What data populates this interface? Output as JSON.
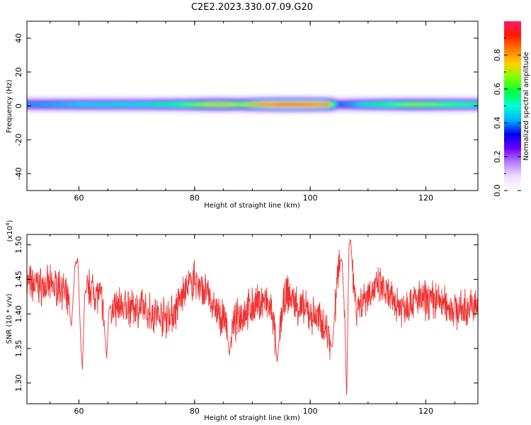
{
  "title": "C2E2.2023.330.07.09.G20",
  "colors": {
    "snr_line": "#ee3333",
    "colormap": [
      "#ffffff",
      "#ece0ff",
      "#b77cff",
      "#6a00ff",
      "#0000ee",
      "#00b3ff",
      "#00ffd5",
      "#00ff40",
      "#7fff00",
      "#ffd000",
      "#ff7a00",
      "#ff1a00",
      "#ff1a6a"
    ]
  },
  "chart_data": [
    {
      "type": "heatmap",
      "xlabel": "Height of straight line (km)",
      "ylabel": "Frequency (Hz)",
      "xlim": [
        51,
        129
      ],
      "ylim": [
        -50,
        50
      ],
      "x_ticks": [
        60,
        80,
        100,
        120
      ],
      "y_ticks": [
        -40,
        -20,
        0,
        20,
        40
      ],
      "colorbar": {
        "label": "Normalized spectral amplitude",
        "range": [
          0,
          1
        ],
        "ticks": [
          0.0,
          0.2,
          0.4,
          0.6,
          0.8
        ]
      },
      "band": {
        "center_hz": 1,
        "halfwidth_hz": 6,
        "peak_amplitude": [
          {
            "height_km": 51,
            "amp": 0.45
          },
          {
            "height_km": 60,
            "amp": 0.5
          },
          {
            "height_km": 70,
            "amp": 0.52
          },
          {
            "height_km": 78,
            "amp": 0.62
          },
          {
            "height_km": 84,
            "amp": 0.8
          },
          {
            "height_km": 88,
            "amp": 0.7
          },
          {
            "height_km": 92,
            "amp": 0.92
          },
          {
            "height_km": 96,
            "amp": 0.98
          },
          {
            "height_km": 100,
            "amp": 0.95
          },
          {
            "height_km": 103,
            "amp": 0.9
          },
          {
            "height_km": 105,
            "amp": 0.4
          },
          {
            "height_km": 110,
            "amp": 0.55
          },
          {
            "height_km": 118,
            "amp": 0.7
          },
          {
            "height_km": 125,
            "amp": 0.62
          },
          {
            "height_km": 129,
            "amp": 0.6
          }
        ]
      }
    },
    {
      "type": "line",
      "xlabel": "Height of straight line (km)",
      "ylabel": "SNR (10 * v/v)",
      "y_multiplier": "(x10^4)",
      "xlim": [
        51,
        129
      ],
      "ylim": [
        1.27,
        1.515
      ],
      "x_ticks": [
        60,
        80,
        100,
        120
      ],
      "y_ticks": [
        1.3,
        1.35,
        1.4,
        1.45,
        1.5
      ],
      "series": [
        {
          "values": [
            [
              51,
              1.445
            ],
            [
              53,
              1.44
            ],
            [
              55,
              1.44
            ],
            [
              57,
              1.44
            ],
            [
              58.3,
              1.41
            ],
            [
              58.7,
              1.38
            ],
            [
              59.3,
              1.47
            ],
            [
              59.8,
              1.48
            ],
            [
              60.3,
              1.36
            ],
            [
              60.6,
              1.32
            ],
            [
              61,
              1.43
            ],
            [
              62,
              1.44
            ],
            [
              63,
              1.43
            ],
            [
              64,
              1.42
            ],
            [
              64.6,
              1.36
            ],
            [
              64.8,
              1.335
            ],
            [
              65.2,
              1.41
            ],
            [
              67,
              1.41
            ],
            [
              70,
              1.41
            ],
            [
              73,
              1.4
            ],
            [
              75,
              1.395
            ],
            [
              76.5,
              1.4
            ],
            [
              78,
              1.43
            ],
            [
              80,
              1.45
            ],
            [
              82,
              1.43
            ],
            [
              84,
              1.4
            ],
            [
              85.5,
              1.39
            ],
            [
              86,
              1.34
            ],
            [
              86.5,
              1.38
            ],
            [
              88,
              1.4
            ],
            [
              90,
              1.41
            ],
            [
              92,
              1.42
            ],
            [
              93.5,
              1.4
            ],
            [
              94.3,
              1.33
            ],
            [
              95,
              1.4
            ],
            [
              96,
              1.43
            ],
            [
              98,
              1.41
            ],
            [
              100,
              1.4
            ],
            [
              102,
              1.39
            ],
            [
              103.2,
              1.37
            ],
            [
              103.8,
              1.35
            ],
            [
              104.5,
              1.43
            ],
            [
              105,
              1.47
            ],
            [
              105.5,
              1.48
            ],
            [
              106,
              1.39
            ],
            [
              106.3,
              1.275
            ],
            [
              106.7,
              1.5
            ],
            [
              107,
              1.51
            ],
            [
              107.4,
              1.45
            ],
            [
              108,
              1.41
            ],
            [
              109,
              1.42
            ],
            [
              110,
              1.43
            ],
            [
              112,
              1.44
            ],
            [
              114,
              1.42
            ],
            [
              116,
              1.41
            ],
            [
              118,
              1.42
            ],
            [
              120,
              1.42
            ],
            [
              122,
              1.42
            ],
            [
              124,
              1.41
            ],
            [
              126,
              1.405
            ],
            [
              128,
              1.41
            ],
            [
              129,
              1.41
            ]
          ]
        }
      ]
    }
  ]
}
